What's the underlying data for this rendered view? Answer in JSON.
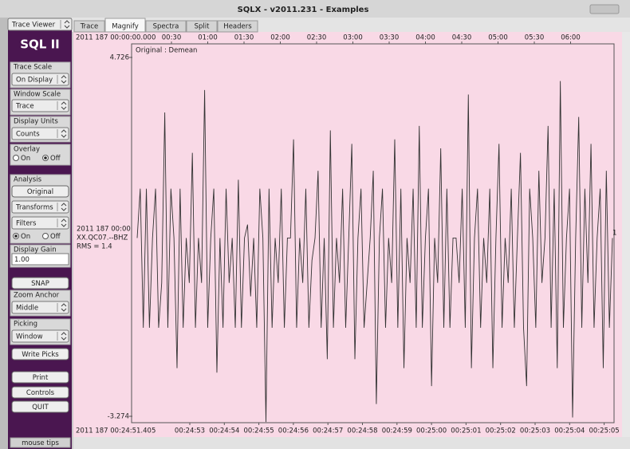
{
  "window_title": "SQLX - v2011.231 - Examples",
  "viewer_select": "Trace Viewer",
  "tabs": [
    "Trace",
    "Magnify",
    "Spectra",
    "Split",
    "Headers"
  ],
  "active_tab": 1,
  "sidebar": {
    "title": "SQL II",
    "trace_scale": {
      "label": "Trace Scale",
      "value": "On Display"
    },
    "window_scale": {
      "label": "Window Scale",
      "value": "Trace"
    },
    "display_units": {
      "label": "Display Units",
      "value": "Counts"
    },
    "overlay": {
      "label": "Overlay",
      "options": [
        "On",
        "Off"
      ],
      "selected": 1
    },
    "analysis": {
      "label": "Analysis",
      "button": "Original",
      "transforms": "Transforms",
      "filters": "Filters",
      "options": [
        "On",
        "Off"
      ],
      "selected": 0
    },
    "display_gain": {
      "label": "Display Gain",
      "value": "1.00"
    },
    "snap": "SNAP",
    "zoom_anchor": {
      "label": "Zoom Anchor",
      "value": "Middle"
    },
    "picking": {
      "label": "Picking",
      "value": "Window"
    },
    "write_picks": "Write Picks",
    "print": "Print",
    "controls": "Controls",
    "quit": "QUIT",
    "mouse_tips": "mouse tips"
  },
  "plot": {
    "top_axis": {
      "start": "2011 187 00:00:00.000",
      "ticks": [
        "00:30",
        "01:00",
        "01:30",
        "02:00",
        "02:30",
        "03:00",
        "03:30",
        "04:00",
        "04:30",
        "05:00",
        "05:30",
        "06:00"
      ]
    },
    "bottom_axis": {
      "start": "2011 187 00:24:51.405",
      "ticks": [
        "00:24:53",
        "00:24:54",
        "00:24:55",
        "00:24:56",
        "00:24:57",
        "00:24:58",
        "00:24:59",
        "00:25:00",
        "00:25:01",
        "00:25:02",
        "00:25:03",
        "00:25:04",
        "00:25:05"
      ]
    },
    "annotation": "Original : Demean",
    "trace_info": [
      "2011 187 00:00",
      "XX.QC07.--BHZ",
      "RMS = 1.4"
    ],
    "trace_number": 1,
    "ylim": [
      -3.274,
      4.726
    ],
    "values": [
      0.7,
      1.8,
      -1.3,
      1.8,
      -1.3,
      0.7,
      1.8,
      -1.3,
      -0.3,
      3.5,
      -1.3,
      1.8,
      0.7,
      -2.2,
      1.8,
      -1.3,
      0.7,
      -0.3,
      2.6,
      -1.3,
      0.7,
      -0.3,
      4.0,
      -1.3,
      0.7,
      1.8,
      -2.3,
      0.7,
      -1.3,
      1.8,
      -0.3,
      0.7,
      -1.3,
      2.0,
      -1.3,
      0.7,
      1.0,
      -0.6,
      0.7,
      -1.3,
      1.8,
      0.7,
      -3.4,
      1.8,
      -1.3,
      0.7,
      -0.3,
      1.8,
      -1.3,
      0.7,
      0.7,
      2.9,
      -1.3,
      0.7,
      -0.3,
      1.8,
      -1.3,
      0.2,
      0.7,
      2.2,
      -1.3,
      0.7,
      -2.0,
      3.1,
      -1.3,
      0.7,
      -0.3,
      1.8,
      -1.3,
      0.7,
      2.8,
      -2.0,
      0.7,
      1.8,
      -1.3,
      -0.3,
      0.7,
      2.2,
      -3.0,
      0.7,
      1.8,
      -1.3,
      0.7,
      -0.3,
      2.9,
      -1.3,
      1.8,
      -2.2,
      0.7,
      -0.3,
      1.8,
      -1.3,
      3.2,
      -1.3,
      0.7,
      1.8,
      -2.6,
      0.7,
      -0.3,
      2.7,
      -1.3,
      1.8,
      -1.3,
      0.7,
      0.7,
      -0.3,
      1.8,
      -1.3,
      3.9,
      -2.2,
      0.7,
      1.8,
      -1.3,
      0.7,
      -0.3,
      1.8,
      -2.2,
      0.7,
      2.8,
      -1.3,
      0.7,
      -0.3,
      1.8,
      -1.3,
      0.7,
      2.6,
      -1.3,
      -2.6,
      1.8,
      0.7,
      -1.3,
      2.2,
      -0.3,
      0.7,
      3.2,
      -1.3,
      1.8,
      -2.2,
      4.2,
      -1.3,
      0.7,
      1.8,
      -3.3,
      0.7,
      3.4,
      -1.3,
      1.8,
      -0.3,
      2.8,
      -1.3,
      0.7,
      1.8,
      -2.2,
      2.2,
      -1.3,
      0.7
    ]
  }
}
